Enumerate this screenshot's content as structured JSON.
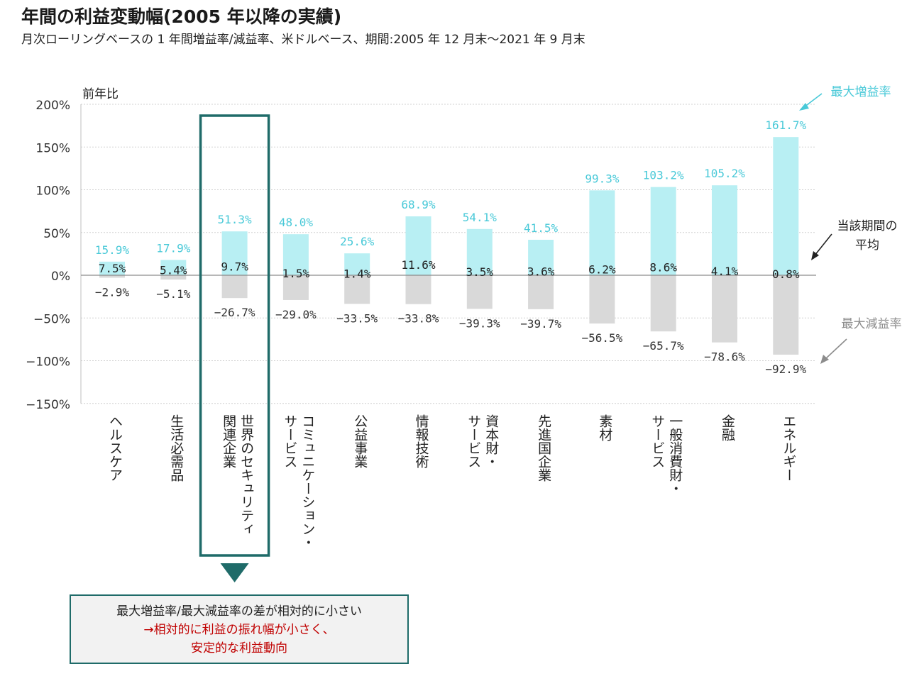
{
  "header": {
    "title": "年間の利益変動幅(2005 年以降の実績)",
    "subtitle": "月次ローリングベースの 1 年間増益率/減益率、米ドルベース、期間:2005 年 12 月末〜2021 年 9 月末"
  },
  "legend": {
    "max_increase": "最大増益率",
    "max_decrease": "最大減益率",
    "average": [
      "当該期間の",
      "平均"
    ]
  },
  "callout": {
    "line1": "最大増益率/最大減益率の差が相対的に小さい",
    "line2": "→相対的に利益の振れ幅が小さく、",
    "line3": "安定的な利益動向"
  },
  "colors": {
    "increase": "#b8eff3",
    "increase_label": "#49c9d8",
    "decrease": "#d9d9d9",
    "average_label": "#222222",
    "highlight": "#1f6b69",
    "callout_text": "#c00000",
    "legend_decrease": "#8c8c8c"
  },
  "chart_data": {
    "type": "bar",
    "ylabel": "前年比",
    "ylim": [
      -150,
      200
    ],
    "yticks": [
      "200%",
      "150%",
      "100%",
      "50%",
      "0%",
      "−50%",
      "−100%",
      "−150%"
    ],
    "ytick_values": [
      200,
      150,
      100,
      50,
      0,
      -50,
      -100,
      -150
    ],
    "grid": true,
    "highlighted_category": 2,
    "categories": [
      [
        "ヘルスケア"
      ],
      [
        "生活必需品"
      ],
      [
        "世界のセキュリティ",
        "関連企業"
      ],
      [
        "コミュニケーション・",
        "サービス"
      ],
      [
        "公益事業"
      ],
      [
        "情報技術"
      ],
      [
        "資本財・",
        "サービス"
      ],
      [
        "先進国企業"
      ],
      [
        "素材"
      ],
      [
        "一般消費財・",
        "サービス"
      ],
      [
        "金融"
      ],
      [
        "エネルギー"
      ]
    ],
    "series": [
      {
        "name": "最大増益率",
        "values": [
          15.9,
          17.9,
          51.3,
          48.0,
          25.6,
          68.9,
          54.1,
          41.5,
          99.3,
          103.2,
          105.2,
          161.7
        ],
        "labels": [
          "15.9%",
          "17.9%",
          "51.3%",
          "48.0%",
          "25.6%",
          "68.9%",
          "54.1%",
          "41.5%",
          "99.3%",
          "103.2%",
          "105.2%",
          "161.7%"
        ]
      },
      {
        "name": "最大減益率",
        "values": [
          -2.9,
          -5.1,
          -26.7,
          -29.0,
          -33.5,
          -33.8,
          -39.3,
          -39.7,
          -56.5,
          -65.7,
          -78.6,
          -92.9
        ],
        "labels": [
          "−2.9%",
          "−5.1%",
          "−26.7%",
          "−29.0%",
          "−33.5%",
          "−33.8%",
          "−39.3%",
          "−39.7%",
          "−56.5%",
          "−65.7%",
          "−78.6%",
          "−92.9%"
        ]
      },
      {
        "name": "当該期間の平均",
        "values": [
          7.5,
          5.4,
          9.7,
          1.5,
          1.4,
          11.6,
          3.5,
          3.6,
          6.2,
          8.6,
          4.1,
          0.8
        ],
        "labels": [
          "7.5%",
          "5.4%",
          "9.7%",
          "1.5%",
          "1.4%",
          "11.6%",
          "3.5%",
          "3.6%",
          "6.2%",
          "8.6%",
          "4.1%",
          "0.8%"
        ]
      }
    ]
  }
}
